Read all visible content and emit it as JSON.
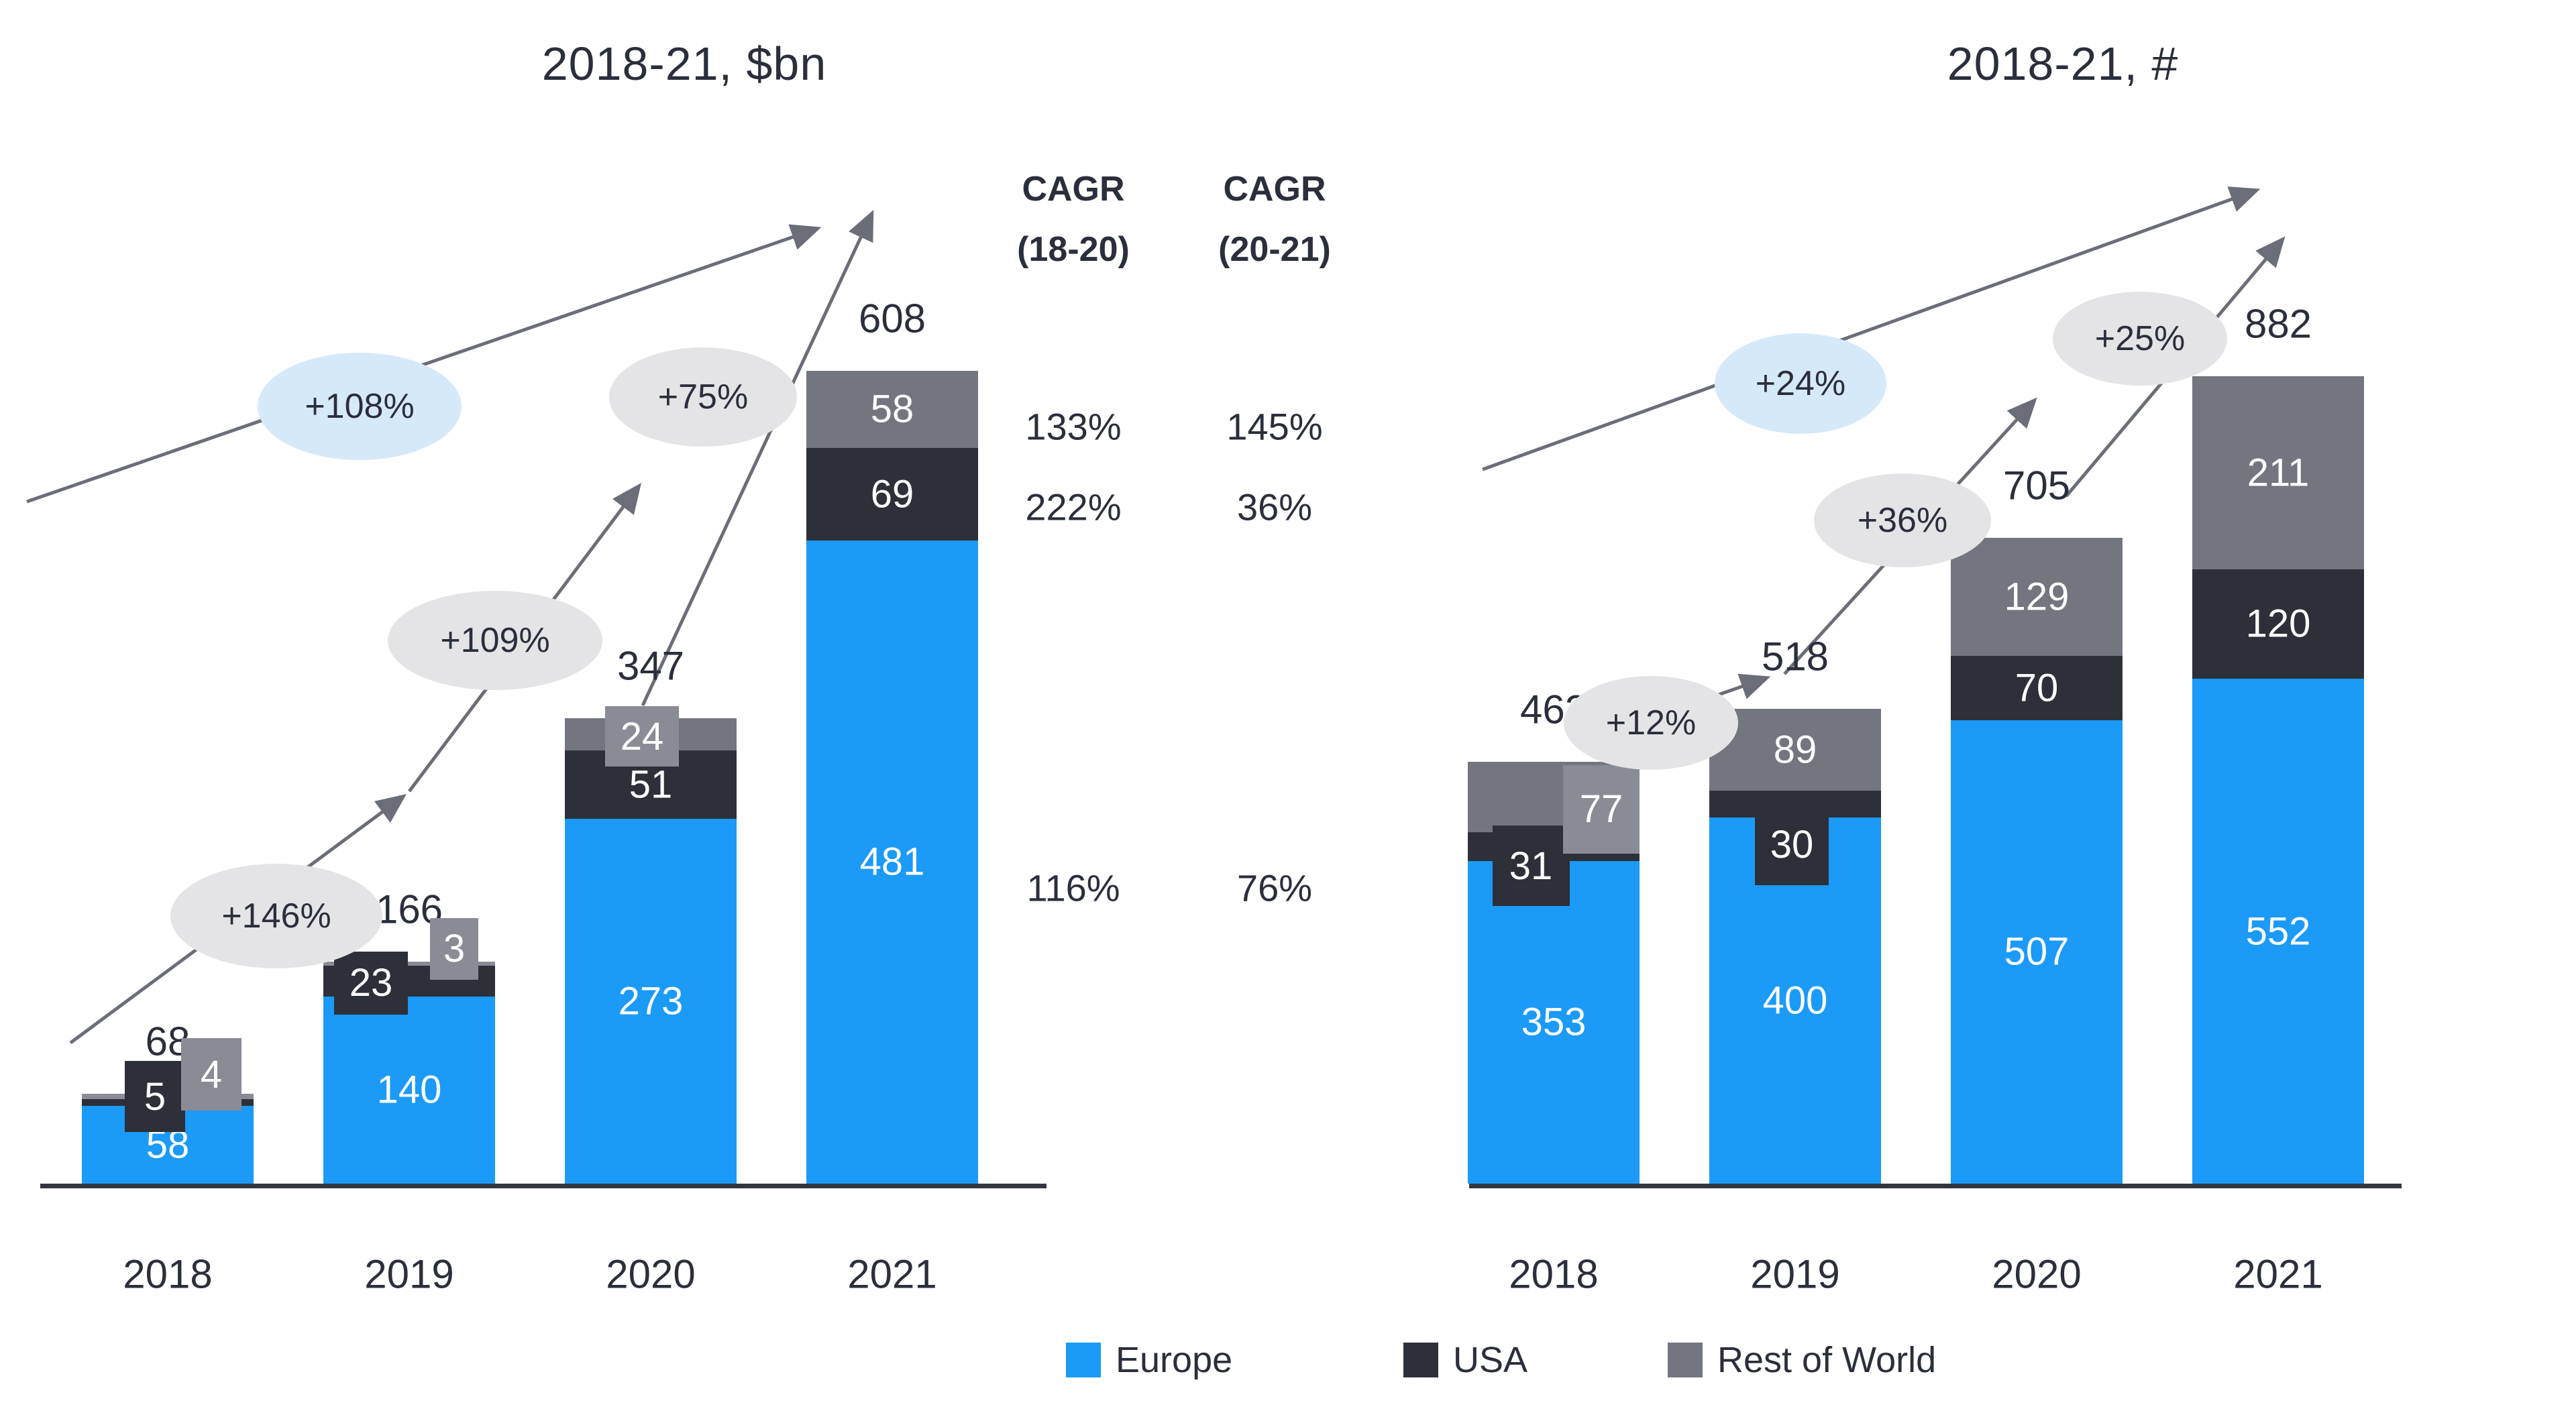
{
  "colors": {
    "europe": "#1B9AF7",
    "usa": "#2D3038",
    "row": "#73757F",
    "row_light": "#8A8C95",
    "ellipse": "#E4E4E7",
    "ellipse_highlight": "#D6E9F9",
    "arrow": "#6B6E78",
    "axis": "#33363F",
    "text": "#2B2E3B",
    "bar_label": "#FFFFFF"
  },
  "chart_data": [
    {
      "id": "left-value-chart",
      "type": "bar",
      "stacked": true,
      "title": "2018-21, $bn",
      "categories": [
        "2018",
        "2019",
        "2020",
        "2021"
      ],
      "series": [
        {
          "name": "Europe",
          "values": [
            58,
            140,
            273,
            481
          ]
        },
        {
          "name": "USA",
          "values": [
            5,
            23,
            51,
            69
          ]
        },
        {
          "name": "Rest of World",
          "values": [
            4,
            3,
            24,
            58
          ]
        }
      ],
      "totals": [
        68,
        166,
        347,
        608
      ],
      "annotations": [
        {
          "label": "+146%",
          "highlight": false
        },
        {
          "label": "+109%",
          "highlight": false
        },
        {
          "label": "+75%",
          "highlight": false
        },
        {
          "label": "+108%",
          "highlight": true
        }
      ],
      "ylim": [
        0,
        608
      ],
      "grid": false,
      "legend_position": "bottom"
    },
    {
      "id": "right-count-chart",
      "type": "bar",
      "stacked": true,
      "title": "2018-21, #",
      "categories": [
        "2018",
        "2019",
        "2020",
        "2021"
      ],
      "series": [
        {
          "name": "Europe",
          "values": [
            353,
            400,
            507,
            552
          ]
        },
        {
          "name": "USA",
          "values": [
            31,
            30,
            70,
            120
          ]
        },
        {
          "name": "Rest of World",
          "values": [
            77,
            89,
            129,
            211
          ]
        }
      ],
      "totals": [
        462,
        518,
        705,
        882
      ],
      "annotations": [
        {
          "label": "+12%",
          "highlight": false
        },
        {
          "label": "+36%",
          "highlight": false
        },
        {
          "label": "+25%",
          "highlight": false
        },
        {
          "label": "+24%",
          "highlight": true
        }
      ],
      "ylim": [
        0,
        882
      ],
      "grid": false,
      "legend_position": "bottom"
    }
  ],
  "cagr": {
    "columns": [
      {
        "line1": "CAGR",
        "line2": "(18-20)"
      },
      {
        "line1": "CAGR",
        "line2": "(20-21)"
      }
    ],
    "rows": [
      [
        "133%",
        "145%"
      ],
      [
        "222%",
        "36%"
      ],
      [
        "116%",
        "76%"
      ]
    ]
  },
  "legend": {
    "items": [
      {
        "label": "Europe",
        "color_key": "europe"
      },
      {
        "label": "USA",
        "color_key": "usa"
      },
      {
        "label": "Rest of World",
        "color_key": "row"
      }
    ]
  }
}
